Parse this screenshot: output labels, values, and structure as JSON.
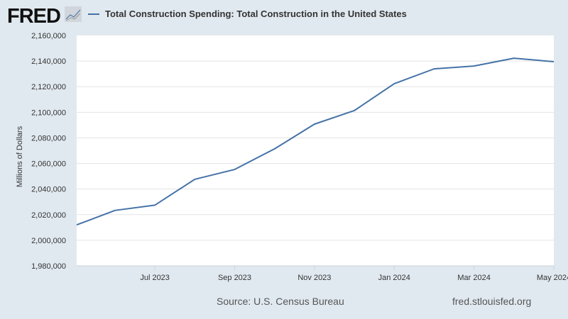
{
  "logo": "FRED",
  "chart_data": {
    "type": "line",
    "title": "",
    "xlabel": "",
    "ylabel": "Millions of Dollars",
    "ylim": [
      1980000,
      2160000
    ],
    "grid": true,
    "legend_position": "top-left",
    "yticks": [
      "2,160,000",
      "2,140,000",
      "2,120,000",
      "2,100,000",
      "2,080,000",
      "2,060,000",
      "2,040,000",
      "2,020,000",
      "2,000,000",
      "1,980,000"
    ],
    "xticks": [
      "Jul 2023",
      "Sep 2023",
      "Nov 2023",
      "Jan 2024",
      "Mar 2024",
      "May 2024"
    ],
    "x": [
      "2023-05",
      "2023-06",
      "2023-07",
      "2023-08",
      "2023-09",
      "2023-10",
      "2023-11",
      "2023-12",
      "2024-01",
      "2024-02",
      "2024-03",
      "2024-04",
      "2024-05"
    ],
    "series": [
      {
        "name": "Total Construction Spending: Total Construction in the United States",
        "color": "#4572a7",
        "values": [
          2012000,
          2023300,
          2027400,
          2047600,
          2055300,
          2071400,
          2090700,
          2101300,
          2122300,
          2133900,
          2136100,
          2142200,
          2139500
        ]
      }
    ]
  },
  "footer": {
    "source": "Source: U.S. Census Bureau",
    "site": "fred.stlouisfed.org"
  }
}
